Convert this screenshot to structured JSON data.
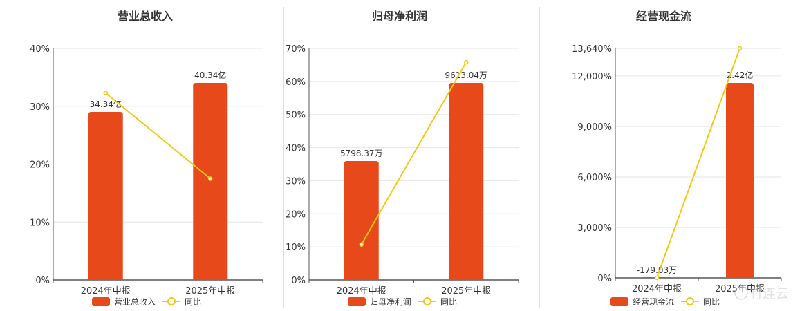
{
  "colors": {
    "bar": "#E8491B",
    "line": "#F2C811",
    "axis": "#555555",
    "grid": "#E6E6E6",
    "divider": "#BBBBBB",
    "text": "#333333"
  },
  "watermark": "有连云",
  "chart_data": [
    {
      "type": "bar",
      "title": "营业总收入",
      "categories": [
        "2024年中报",
        "2025年中报"
      ],
      "ylim": [
        0,
        40
      ],
      "yticks": [
        "0%",
        "10%",
        "20%",
        "30%",
        "40%"
      ],
      "series": [
        {
          "name": "营业总收入",
          "kind": "bar",
          "values": [
            29,
            34
          ],
          "labels": [
            "34.34亿",
            "40.34亿"
          ]
        },
        {
          "name": "同比",
          "kind": "line",
          "values": [
            32.3,
            17.5
          ]
        }
      ],
      "legend": "bottom",
      "grid": true
    },
    {
      "type": "bar",
      "title": "归母净利润",
      "categories": [
        "2024年中报",
        "2025年中报"
      ],
      "ylim": [
        0,
        70
      ],
      "yticks": [
        "0%",
        "10%",
        "20%",
        "30%",
        "40%",
        "50%",
        "60%",
        "70%"
      ],
      "series": [
        {
          "name": "归母净利润",
          "kind": "bar",
          "values": [
            36,
            59.5
          ],
          "labels": [
            "5798.37万",
            "9613.04万"
          ]
        },
        {
          "name": "同比",
          "kind": "line",
          "values": [
            10.7,
            65.8
          ]
        }
      ],
      "legend": "bottom",
      "grid": true
    },
    {
      "type": "bar",
      "title": "经营现金流",
      "categories": [
        "2024年中报",
        "2025年中报"
      ],
      "ylim": [
        0,
        13640
      ],
      "yticks": [
        "0%",
        "3,000%",
        "6,000%",
        "9,000%",
        "12,000%",
        "13,640%"
      ],
      "ytick_values": [
        0,
        3000,
        6000,
        9000,
        12000,
        13640
      ],
      "series": [
        {
          "name": "经营现金流",
          "kind": "bar",
          "values": [
            0,
            11600
          ],
          "labels": [
            "-179.03万",
            "2.42亿"
          ]
        },
        {
          "name": "同比",
          "kind": "line",
          "values": [
            0,
            13640
          ]
        }
      ],
      "legend": "bottom",
      "grid": true
    }
  ]
}
